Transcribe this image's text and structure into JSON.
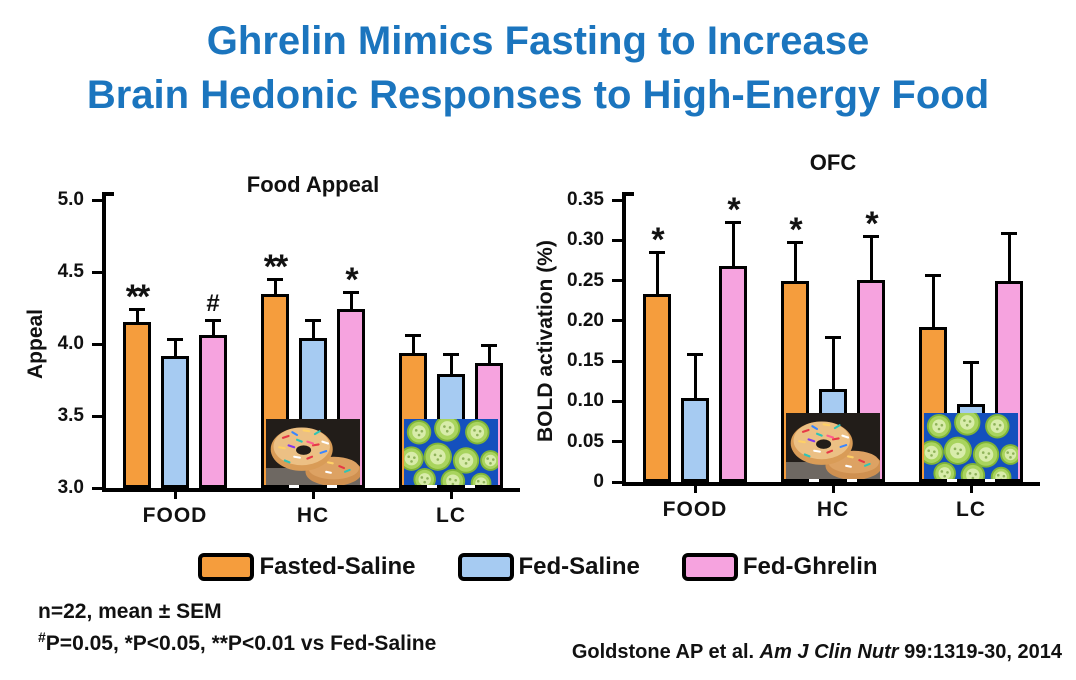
{
  "title": {
    "line1": "Ghrelin Mimics Fasting to Increase",
    "line2": "Brain Hedonic Responses to High-Energy Food",
    "color": "#1B75BE"
  },
  "colors": {
    "fasted_saline": "#F59D3D",
    "fed_saline": "#A6CBF2",
    "fed_ghrelin": "#F6A3DF",
    "axis": "#000000",
    "title_blue": "#1B75BE"
  },
  "chart_data": [
    {
      "type": "bar",
      "title": "Food Appeal",
      "ylabel": "Appeal",
      "xlabel": "",
      "ylim": [
        3.0,
        5.0
      ],
      "yticks": [
        3.0,
        3.5,
        4.0,
        4.5,
        5.0
      ],
      "ytick_labels": [
        "3.0",
        "3.5",
        "4.0",
        "4.5",
        "5.0"
      ],
      "categories": [
        "FOOD",
        "HC",
        "LC"
      ],
      "grid": false,
      "series": [
        {
          "name": "Fasted-Saline",
          "color": "#F59D3D",
          "values": [
            4.15,
            4.35,
            3.94
          ],
          "errors": [
            0.08,
            0.09,
            0.11
          ],
          "sig": [
            "**",
            "**",
            ""
          ]
        },
        {
          "name": "Fed-Saline",
          "color": "#A6CBF2",
          "values": [
            3.92,
            4.04,
            3.79
          ],
          "errors": [
            0.1,
            0.11,
            0.13
          ],
          "sig": [
            "",
            "",
            ""
          ]
        },
        {
          "name": "Fed-Ghrelin",
          "color": "#F6A3DF",
          "values": [
            4.06,
            4.24,
            3.87
          ],
          "errors": [
            0.09,
            0.11,
            0.11
          ],
          "sig": [
            "#",
            "*",
            ""
          ]
        }
      ],
      "overlays": [
        {
          "category": "HC",
          "image": "donuts-photo"
        },
        {
          "category": "LC",
          "image": "cucumbers-photo"
        }
      ]
    },
    {
      "type": "bar",
      "title": "OFC",
      "ylabel": "BOLD activation (%)",
      "xlabel": "",
      "ylim": [
        0,
        0.35
      ],
      "yticks": [
        0,
        0.05,
        0.1,
        0.15,
        0.2,
        0.25,
        0.3,
        0.35
      ],
      "ytick_labels": [
        "0",
        "0.05",
        "0.10",
        "0.15",
        "0.20",
        "0.25",
        "0.30",
        "0.35"
      ],
      "categories": [
        "FOOD",
        "HC",
        "LC"
      ],
      "grid": false,
      "series": [
        {
          "name": "Fasted-Saline",
          "color": "#F59D3D",
          "values": [
            0.233,
            0.25,
            0.192
          ],
          "errors": [
            0.05,
            0.045,
            0.063
          ],
          "sig": [
            "*",
            "*",
            ""
          ]
        },
        {
          "name": "Fed-Saline",
          "color": "#A6CBF2",
          "values": [
            0.104,
            0.115,
            0.097
          ],
          "errors": [
            0.053,
            0.063,
            0.05
          ],
          "sig": [
            "",
            "",
            ""
          ]
        },
        {
          "name": "Fed-Ghrelin",
          "color": "#F6A3DF",
          "values": [
            0.268,
            0.251,
            0.249
          ],
          "errors": [
            0.052,
            0.052,
            0.057
          ],
          "sig": [
            "*",
            "*",
            ""
          ]
        }
      ],
      "overlays": [
        {
          "category": "HC",
          "image": "donuts-photo"
        },
        {
          "category": "LC",
          "image": "cucumbers-photo"
        }
      ]
    }
  ],
  "legend": {
    "items": [
      {
        "label": "Fasted-Saline",
        "color": "#F59D3D"
      },
      {
        "label": "Fed-Saline",
        "color": "#A6CBF2"
      },
      {
        "label": "Fed-Ghrelin",
        "color": "#F6A3DF"
      }
    ]
  },
  "notes": {
    "line1": "n=22, mean ± SEM",
    "line2_sup": "#",
    "line2_rest": "P=0.05, *P<0.05, **P<0.01 vs Fed-Saline"
  },
  "citation": {
    "authors": "Goldstone AP et al. ",
    "journal_italic": "Am J Clin Nutr",
    "rest": " 99:1319-30, 2014"
  }
}
